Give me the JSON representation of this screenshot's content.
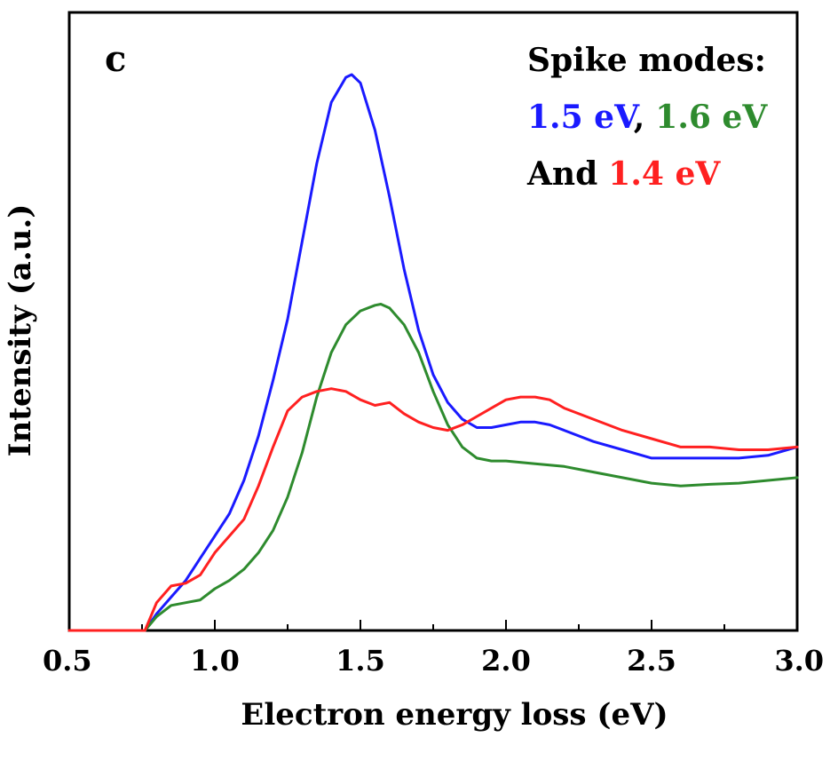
{
  "chart_data": {
    "type": "line",
    "panel_label": "c",
    "xlabel": "Electron energy loss (eV)",
    "ylabel": "Intensity (a.u.)",
    "xlim": [
      0.5,
      3.0
    ],
    "ylim": [
      0,
      100
    ],
    "x_ticks": [
      "0.5",
      "1.0",
      "1.5",
      "2.0",
      "2.5",
      "3.0"
    ],
    "x_tick_values": [
      0.5,
      1.0,
      1.5,
      2.0,
      2.5,
      3.0
    ],
    "grid": false,
    "annotation": {
      "line1": "Spike modes:",
      "blue_label": "1.5 eV",
      "separator": ",",
      "green_label": "1.6 eV",
      "and_word": "And",
      "red_label": "1.4 eV"
    },
    "colors": {
      "blue": "#1a1aff",
      "green": "#2e8b2e",
      "red": "#ff2020"
    },
    "series": [
      {
        "color": "blue",
        "x": [
          0.5,
          0.76,
          0.8,
          0.85,
          0.9,
          0.95,
          1.0,
          1.05,
          1.1,
          1.15,
          1.2,
          1.25,
          1.3,
          1.35,
          1.4,
          1.45,
          1.47,
          1.5,
          1.55,
          1.6,
          1.65,
          1.7,
          1.75,
          1.8,
          1.85,
          1.9,
          1.95,
          2.0,
          2.05,
          2.1,
          2.15,
          2.2,
          2.3,
          2.4,
          2.5,
          2.6,
          2.7,
          2.8,
          2.9,
          3.0
        ],
        "y": [
          0,
          0,
          3,
          6,
          9,
          13,
          17,
          21,
          27,
          35,
          45,
          56,
          70,
          84,
          95,
          99.5,
          100,
          98.5,
          90,
          78,
          65,
          54,
          46,
          41,
          38,
          36.5,
          36.5,
          37,
          37.5,
          37.5,
          37,
          36,
          34,
          32.5,
          31,
          31,
          31,
          31,
          31.5,
          33
        ]
      },
      {
        "color": "green",
        "x": [
          0.5,
          0.76,
          0.8,
          0.85,
          0.9,
          0.95,
          1.0,
          1.05,
          1.1,
          1.15,
          1.2,
          1.25,
          1.3,
          1.35,
          1.4,
          1.45,
          1.5,
          1.55,
          1.57,
          1.6,
          1.65,
          1.7,
          1.75,
          1.8,
          1.85,
          1.9,
          1.95,
          2.0,
          2.1,
          2.2,
          2.3,
          2.4,
          2.5,
          2.6,
          2.7,
          2.8,
          2.9,
          3.0
        ],
        "y": [
          0,
          0,
          2.5,
          4.5,
          5,
          5.5,
          7.5,
          9,
          11,
          14,
          18,
          24,
          32,
          42,
          50,
          55,
          57.5,
          58.5,
          58.7,
          58,
          55,
          50,
          43,
          37,
          33,
          31,
          30.5,
          30.5,
          30,
          29.5,
          28.5,
          27.5,
          26.5,
          26,
          26.3,
          26.5,
          27,
          27.5
        ]
      },
      {
        "color": "red",
        "x": [
          0.5,
          0.76,
          0.8,
          0.85,
          0.9,
          0.95,
          1.0,
          1.05,
          1.1,
          1.15,
          1.2,
          1.25,
          1.3,
          1.35,
          1.4,
          1.45,
          1.5,
          1.55,
          1.6,
          1.65,
          1.7,
          1.75,
          1.8,
          1.85,
          1.9,
          1.95,
          2.0,
          2.05,
          2.1,
          2.15,
          2.2,
          2.3,
          2.4,
          2.5,
          2.6,
          2.7,
          2.8,
          2.9,
          3.0
        ],
        "y": [
          0,
          0,
          5,
          8,
          8.5,
          10,
          14,
          17,
          20,
          26,
          33,
          39.5,
          42,
          43,
          43.5,
          43,
          41.5,
          40.5,
          41,
          39,
          37.5,
          36.5,
          36,
          37,
          38.5,
          40,
          41.5,
          42,
          42,
          41.5,
          40,
          38,
          36,
          34.5,
          33,
          33,
          32.5,
          32.5,
          33
        ]
      }
    ]
  }
}
